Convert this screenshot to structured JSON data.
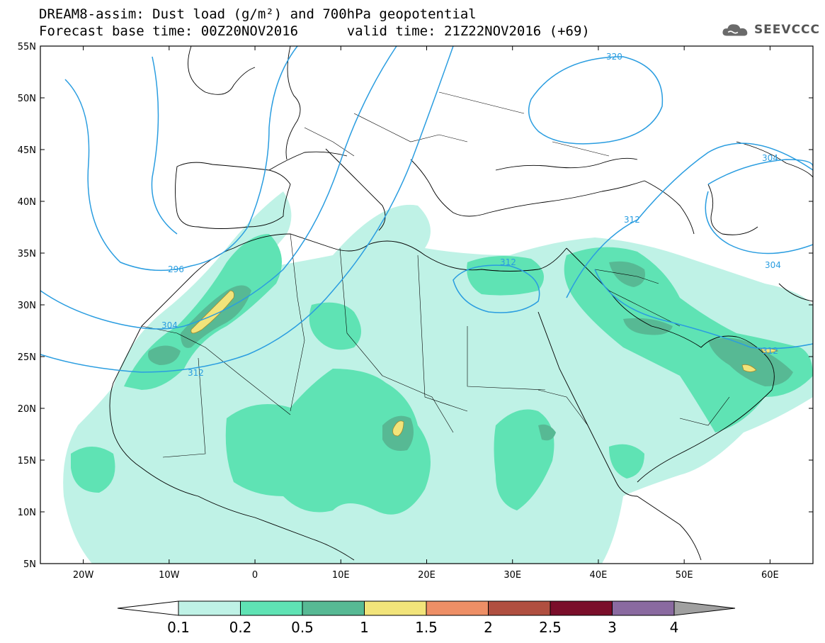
{
  "title": {
    "line1": "DREAM8-assim: Dust load (g/m²) and 700hPa geopotential",
    "base_label": "Forecast base time: 00Z20NOV2016",
    "valid_label": "valid time: 21Z22NOV2016 (+69)"
  },
  "logo": {
    "text": "SEEVCCC",
    "icon": "cloud-icon"
  },
  "map": {
    "lat_labels": [
      "55N",
      "50N",
      "45N",
      "40N",
      "35N",
      "30N",
      "25N",
      "20N",
      "15N",
      "10N",
      "5N"
    ],
    "lon_labels": [
      "20W",
      "10W",
      "0",
      "10E",
      "20E",
      "30E",
      "40E",
      "50E",
      "60E"
    ],
    "contour_labels": [
      "320",
      "304",
      "312",
      "296",
      "304",
      "312",
      "312",
      "312",
      "304"
    ]
  },
  "colorbar": {
    "ticks": [
      "0.1",
      "0.2",
      "0.5",
      "1",
      "1.5",
      "2",
      "2.5",
      "3",
      "4"
    ],
    "colors": [
      "#bff2e6",
      "#5fe3b4",
      "#57b994",
      "#f2e47a",
      "#ee8f66",
      "#b04f40",
      "#7a0e2a",
      "#8a6aa0"
    ],
    "under_color": "#ffffff",
    "over_color": "#a0a0a0"
  }
}
